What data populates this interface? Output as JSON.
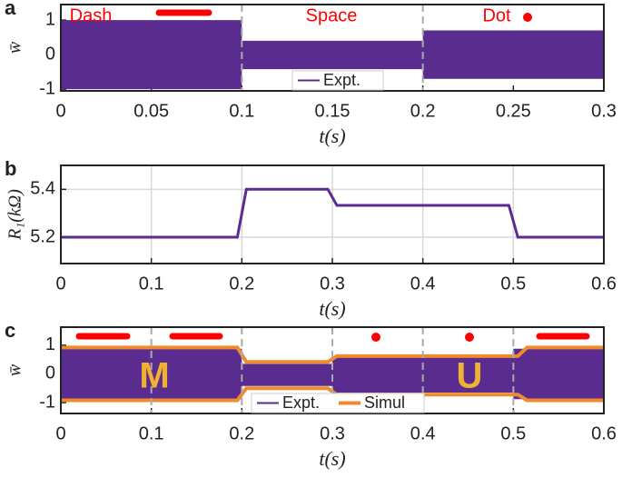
{
  "chart_data": [
    {
      "type": "band",
      "panel_label": "a",
      "y_label": "w̄",
      "x_label": "t(s)",
      "xlim": [
        0,
        0.3
      ],
      "xticks": [
        0,
        0.05,
        0.1,
        0.15,
        0.2,
        0.25,
        0.3
      ],
      "ylim": [
        -1.05,
        1.45
      ],
      "yticks": [
        -1,
        0,
        1
      ],
      "vlines": [
        0.1,
        0.2
      ],
      "annotations": [
        "Dash",
        "Space",
        "Dot"
      ],
      "annotation_color": "#ff0000",
      "legend": "bottom",
      "series": [
        {
          "name": "Expt.",
          "type": "band",
          "color": "#5b2c8f",
          "x": [
            0,
            0.1,
            0.1,
            0.2,
            0.2,
            0.3
          ],
          "upper": [
            1,
            1,
            0.4,
            0.4,
            0.7,
            0.7
          ],
          "lower": [
            -1,
            -1,
            -0.42,
            -0.42,
            -0.7,
            -0.7
          ]
        }
      ]
    },
    {
      "type": "line",
      "panel_label": "b",
      "y_label": "R₁(kΩ)",
      "x_label": "t(s)",
      "xlim": [
        0,
        0.6
      ],
      "xticks": [
        0,
        0.1,
        0.2,
        0.3,
        0.4,
        0.5,
        0.6
      ],
      "ylim": [
        5.09,
        5.5
      ],
      "yticks": [
        5.2,
        5.4
      ],
      "grid": true,
      "series": [
        {
          "type": "line",
          "color": "#5b2c8f",
          "x": [
            0,
            0.195,
            0.205,
            0.295,
            0.305,
            0.495,
            0.505,
            0.6
          ],
          "values": [
            5.2,
            5.2,
            5.4,
            5.4,
            5.333,
            5.333,
            5.2,
            5.2
          ]
        }
      ]
    },
    {
      "type": "band",
      "panel_label": "c",
      "y_label": "w̄",
      "x_label": "t(s)",
      "xlim": [
        0,
        0.6
      ],
      "xticks": [
        0,
        0.1,
        0.2,
        0.3,
        0.4,
        0.5,
        0.6
      ],
      "ylim": [
        -1.38,
        1.63
      ],
      "yticks": [
        -1,
        0,
        1
      ],
      "vlines": [
        0.1,
        0.2,
        0.3,
        0.4,
        0.5
      ],
      "annotations": [
        "M",
        "U"
      ],
      "annotation_color": "#f0b030",
      "legend": "bottom",
      "series": [
        {
          "name": "Expt.",
          "type": "band",
          "color": "#5b2c8f",
          "x": [
            0,
            0.2,
            0.2,
            0.3,
            0.3,
            0.5,
            0.5,
            0.6
          ],
          "upper": [
            0.88,
            0.88,
            0.35,
            0.35,
            0.6,
            0.6,
            0.88,
            0.88
          ],
          "lower": [
            -0.88,
            -0.88,
            -0.42,
            -0.42,
            -0.65,
            -0.65,
            -0.88,
            -0.88
          ]
        },
        {
          "name": "Simul",
          "type": "outline",
          "color": "#f08a2c",
          "x": [
            0,
            0.195,
            0.205,
            0.295,
            0.305,
            0.505,
            0.515,
            0.6
          ],
          "upper": [
            0.92,
            0.92,
            0.42,
            0.42,
            0.62,
            0.62,
            0.92,
            0.92
          ],
          "lower": [
            -0.92,
            -0.92,
            -0.5,
            -0.5,
            -0.72,
            -0.72,
            -0.92,
            -0.92
          ]
        }
      ]
    }
  ]
}
